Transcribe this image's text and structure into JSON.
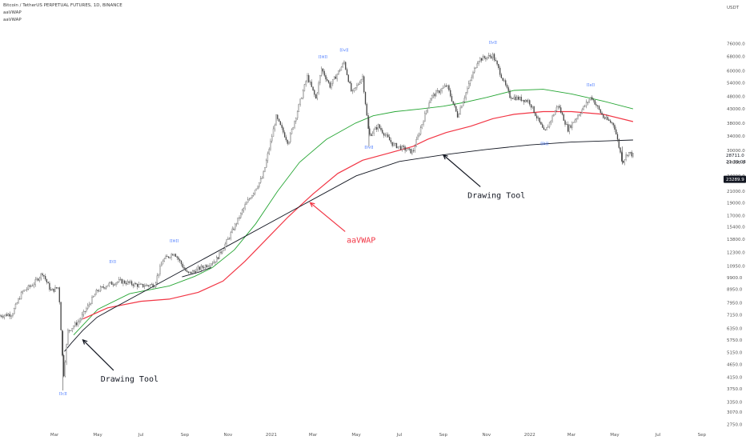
{
  "legend": {
    "symbol": "Bitcoin / TetherUS PERPETUAL FUTURES, 1D, BINANCE",
    "indicator_1": "aaVWAP",
    "indicator_2": "aaVWAP"
  },
  "chart_data": {
    "type": "line",
    "scale": "log",
    "currency": "USDT",
    "y_ticks": [
      76000,
      68000,
      60000,
      54000,
      48000,
      43000,
      38000,
      34000,
      30000,
      27000,
      24000,
      21000,
      19000,
      17000,
      15400,
      13800,
      12300,
      10950,
      9900,
      8950,
      7950,
      7150,
      6350,
      5750,
      5150,
      4650,
      4150,
      3750,
      3350,
      3070,
      2750
    ],
    "y_tick_labels": [
      "76000.0",
      "68000.0",
      "60000.0",
      "54000.0",
      "48000.0",
      "43000.0",
      "38000.0",
      "34000.0",
      "30000.0",
      "27000.0",
      "24000.0",
      "21000.0",
      "19000.0",
      "17000.0",
      "15400.0",
      "13800.0",
      "12300.0",
      "10950.0",
      "9900.0",
      "8950.0",
      "7950.0",
      "7150.0",
      "6350.0",
      "5750.0",
      "5150.0",
      "4650.0",
      "4150.0",
      "3750.0",
      "3350.0",
      "3070.0",
      "2750.0"
    ],
    "ylim": [
      2650,
      105000
    ],
    "price_tags": [
      {
        "label": "23289.9",
        "value": 23289.9,
        "color": "#131722"
      },
      {
        "label": "28711.0",
        "value": 28711.0,
        "color": "#131722"
      },
      {
        "label": "21:39:08",
        "value": 27200,
        "color": "#131722"
      }
    ],
    "x_axis_labels": [
      "Mar",
      "May",
      "Jul",
      "Sep",
      "Nov",
      "2021",
      "Mar",
      "May",
      "Jul",
      "Sep",
      "Nov",
      "2022",
      "Mar",
      "May",
      "Jul",
      "Sep"
    ],
    "x_axis_months": [
      "2020-03",
      "2020-05",
      "2020-07",
      "2020-09",
      "2020-11",
      "2021-01",
      "2021-03",
      "2021-05",
      "2021-07",
      "2021-09",
      "2021-11",
      "2022-01",
      "2022-03",
      "2022-05",
      "2022-07",
      "2022-09"
    ],
    "series": [
      {
        "style": "candles",
        "color": "#444444",
        "points": [
          [
            "2019-12-15",
            7100
          ],
          [
            "2020-01-01",
            7200
          ],
          [
            "2020-01-15",
            8700
          ],
          [
            "2020-02-01",
            9400
          ],
          [
            "2020-02-13",
            10300
          ],
          [
            "2020-02-25",
            8800
          ],
          [
            "2020-03-07",
            9100
          ],
          [
            "2020-03-12",
            5000
          ],
          [
            "2020-03-13",
            4000
          ],
          [
            "2020-03-20",
            6200
          ],
          [
            "2020-04-05",
            6800
          ],
          [
            "2020-04-30",
            8800
          ],
          [
            "2020-05-15",
            9300
          ],
          [
            "2020-06-01",
            9600
          ],
          [
            "2020-07-01",
            9200
          ],
          [
            "2020-07-20",
            9300
          ],
          [
            "2020-08-01",
            11500
          ],
          [
            "2020-08-17",
            12300
          ],
          [
            "2020-09-05",
            10200
          ],
          [
            "2020-09-25",
            10800
          ],
          [
            "2020-10-15",
            11500
          ],
          [
            "2020-11-01",
            13800
          ],
          [
            "2020-11-25",
            18500
          ],
          [
            "2020-12-20",
            23800
          ],
          [
            "2021-01-08",
            40000
          ],
          [
            "2021-01-25",
            32000
          ],
          [
            "2021-02-21",
            57000
          ],
          [
            "2021-03-05",
            47000
          ],
          [
            "2021-03-13",
            61000
          ],
          [
            "2021-03-25",
            52500
          ],
          [
            "2021-04-14",
            64500
          ],
          [
            "2021-04-25",
            49000
          ],
          [
            "2021-05-10",
            57000
          ],
          [
            "2021-05-19",
            34000
          ],
          [
            "2021-06-01",
            37000
          ],
          [
            "2021-06-22",
            31500
          ],
          [
            "2021-07-20",
            29500
          ],
          [
            "2021-08-14",
            47500
          ],
          [
            "2021-09-06",
            52800
          ],
          [
            "2021-09-21",
            40500
          ],
          [
            "2021-10-20",
            66000
          ],
          [
            "2021-11-10",
            68500
          ],
          [
            "2021-12-04",
            48000
          ],
          [
            "2021-12-31",
            46000
          ],
          [
            "2022-01-22",
            34800
          ],
          [
            "2022-02-10",
            44500
          ],
          [
            "2022-02-24",
            36000
          ],
          [
            "2022-03-29",
            47800
          ],
          [
            "2022-04-15",
            40000
          ],
          [
            "2022-04-30",
            37500
          ],
          [
            "2022-05-12",
            27000
          ],
          [
            "2022-05-20",
            29500
          ],
          [
            "2022-05-27",
            28700
          ]
        ]
      },
      {
        "name": "aaVWAP",
        "color": "#26a634",
        "points": [
          [
            "2020-03-28",
            6000
          ],
          [
            "2020-05-01",
            7500
          ],
          [
            "2020-06-15",
            8600
          ],
          [
            "2020-08-10",
            9200
          ],
          [
            "2020-09-15",
            10000
          ],
          [
            "2020-10-10",
            10800
          ],
          [
            "2020-11-10",
            12600
          ],
          [
            "2020-12-10",
            15800
          ],
          [
            "2021-01-10",
            21000
          ],
          [
            "2021-02-10",
            27000
          ],
          [
            "2021-03-20",
            33000
          ],
          [
            "2021-04-30",
            38000
          ],
          [
            "2021-05-25",
            40500
          ],
          [
            "2021-06-25",
            42000
          ],
          [
            "2021-08-01",
            43000
          ],
          [
            "2021-09-01",
            44000
          ],
          [
            "2021-10-01",
            45500
          ],
          [
            "2021-11-01",
            47500
          ],
          [
            "2021-12-10",
            50500
          ],
          [
            "2022-01-20",
            51000
          ],
          [
            "2022-03-01",
            49000
          ],
          [
            "2022-04-15",
            46000
          ],
          [
            "2022-05-27",
            43000
          ]
        ]
      },
      {
        "name": "aaVWAP",
        "color": "#f23645",
        "points": [
          [
            "2020-04-10",
            6900
          ],
          [
            "2020-05-15",
            7600
          ],
          [
            "2020-07-01",
            8050
          ],
          [
            "2020-08-10",
            8200
          ],
          [
            "2020-09-20",
            8700
          ],
          [
            "2020-10-25",
            9600
          ],
          [
            "2020-11-25",
            11400
          ],
          [
            "2020-12-25",
            13800
          ],
          [
            "2021-01-25",
            16800
          ],
          [
            "2021-03-01",
            20500
          ],
          [
            "2021-04-05",
            24500
          ],
          [
            "2021-05-10",
            27500
          ],
          [
            "2021-06-15",
            29200
          ],
          [
            "2021-07-20",
            31000
          ],
          [
            "2021-08-10",
            33000
          ],
          [
            "2021-09-05",
            35000
          ],
          [
            "2021-10-10",
            37000
          ],
          [
            "2021-11-10",
            39500
          ],
          [
            "2021-12-10",
            41000
          ],
          [
            "2022-01-20",
            42000
          ],
          [
            "2022-03-01",
            42000
          ],
          [
            "2022-04-15",
            41000
          ],
          [
            "2022-05-27",
            38500
          ]
        ]
      },
      {
        "name": "Drawing Tool",
        "color": "#131722",
        "points": [
          [
            "2020-03-15",
            5200
          ],
          [
            "2020-03-25",
            5600
          ],
          [
            "2020-04-10",
            6250
          ],
          [
            "2020-04-30",
            7000
          ],
          [
            "2020-05-20",
            7500
          ],
          [
            "2021-05-01",
            24000
          ],
          [
            "2021-07-01",
            27200
          ],
          [
            "2021-09-01",
            28800
          ],
          [
            "2021-11-01",
            30200
          ],
          [
            "2022-01-01",
            31400
          ],
          [
            "2022-03-01",
            32200
          ],
          [
            "2022-05-27",
            32800
          ]
        ]
      },
      {
        "name": "Drawing Tool",
        "color": "#131722",
        "points": [
          [
            "2020-08-28",
            9950
          ],
          [
            "2020-09-22",
            10400
          ],
          [
            "2020-10-08",
            10800
          ]
        ]
      }
    ],
    "wave_labels": [
      {
        "text": "[[c]]",
        "date": "2020-03-13",
        "value": 3560,
        "color": "#2962ff"
      },
      {
        "text": "[[i]]",
        "date": "2020-05-22",
        "value": 11250,
        "color": "#2962ff"
      },
      {
        "text": "[[iii]]",
        "date": "2020-08-17",
        "value": 13500,
        "color": "#2962ff"
      },
      {
        "text": "[[iii]]",
        "date": "2021-03-15",
        "value": 67000,
        "color": "#2962ff"
      },
      {
        "text": "[[iv]]",
        "date": "2021-04-14",
        "value": 71000,
        "color": "#2962ff"
      },
      {
        "text": "[[iv]]",
        "date": "2021-05-19",
        "value": 30500,
        "color": "#2962ff"
      },
      {
        "text": "[[v]]",
        "date": "2021-11-10",
        "value": 76000,
        "color": "#2962ff"
      },
      {
        "text": "[[b]]",
        "date": "2022-01-22",
        "value": 31500,
        "color": "#2962ff"
      },
      {
        "text": "[[a]]",
        "date": "2022-03-28",
        "value": 52500,
        "color": "#2962ff"
      }
    ],
    "annotations": [
      {
        "text": "Drawing Tool",
        "date": "2020-06-15",
        "value": 4000,
        "color": "#131722",
        "arrow_to": [
          "2020-04-10",
          5750
        ]
      },
      {
        "text": "aaVWAP",
        "date": "2021-05-08",
        "value": 13400,
        "color": "#f23645",
        "arrow_to": [
          "2021-02-25",
          19000
        ]
      },
      {
        "text": "Drawing Tool",
        "date": "2021-11-15",
        "value": 19800,
        "color": "#131722",
        "arrow_to": [
          "2021-09-01",
          28800
        ]
      }
    ]
  }
}
